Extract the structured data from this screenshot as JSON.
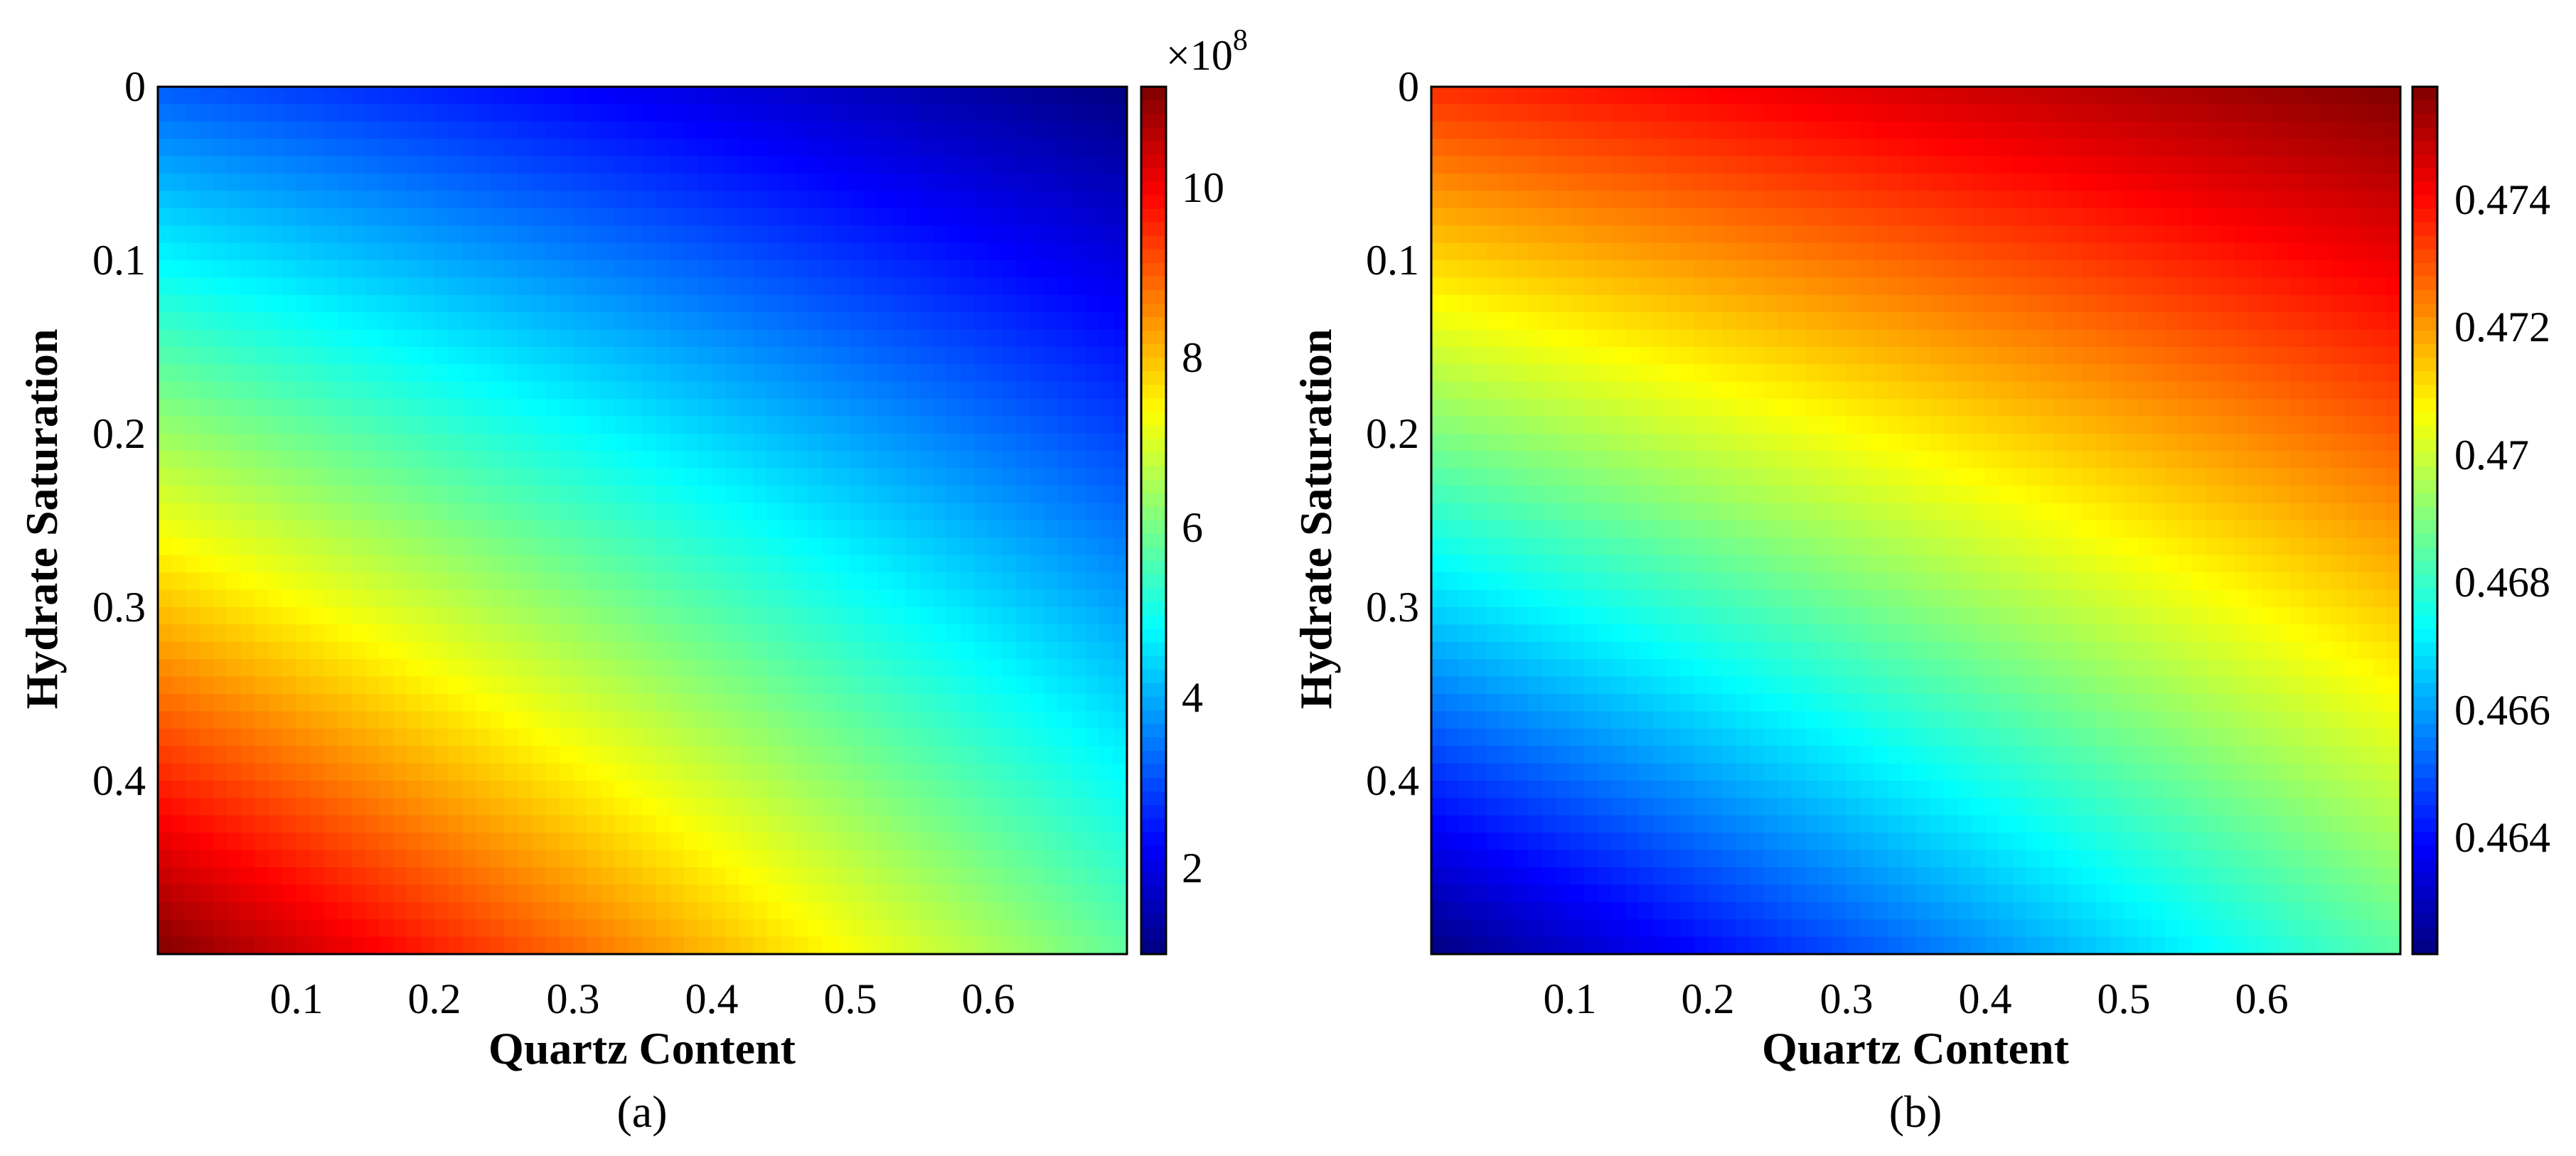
{
  "chart_data": [
    {
      "type": "heatmap",
      "panel_label": "(a)",
      "xlabel": "Quartz Content",
      "ylabel": "Hydrate Saturation",
      "x_range": [
        0.0,
        0.7
      ],
      "y_range": [
        0.0,
        0.5
      ],
      "y_reversed": true,
      "x_ticks": [
        "0.1",
        "0.2",
        "0.3",
        "0.4",
        "0.5",
        "0.6"
      ],
      "y_ticks": [
        "0",
        "0.1",
        "0.2",
        "0.3",
        "0.4"
      ],
      "colorbar": {
        "min": 1.0,
        "max": 11.2,
        "ticks": [
          "2",
          "4",
          "6",
          "8",
          "10"
        ],
        "multiplier": "×10",
        "exponent": "8",
        "colormap": "jet"
      },
      "corner_values": {
        "x0_y0": 3.2,
        "x07_y0": 1.0,
        "x0_y05": 11.2,
        "x07_y05": 5.8
      },
      "grid": false
    },
    {
      "type": "heatmap",
      "panel_label": "(b)",
      "xlabel": "Quartz Content",
      "ylabel": "Hydrate Saturation",
      "x_range": [
        0.0,
        0.7
      ],
      "y_range": [
        0.0,
        0.5
      ],
      "y_reversed": true,
      "x_ticks": [
        "0.1",
        "0.2",
        "0.3",
        "0.4",
        "0.5",
        "0.6"
      ],
      "y_ticks": [
        "0",
        "0.1",
        "0.2",
        "0.3",
        "0.4"
      ],
      "colorbar": {
        "min": 0.4622,
        "max": 0.4758,
        "ticks": [
          "0.464",
          "0.466",
          "0.468",
          "0.47",
          "0.472",
          "0.474"
        ],
        "colormap": "jet"
      },
      "corner_values": {
        "x0_y0": 0.4735,
        "x07_y0": 0.4758,
        "x0_y05": 0.4622,
        "x07_y05": 0.4685
      },
      "grid": false
    }
  ]
}
